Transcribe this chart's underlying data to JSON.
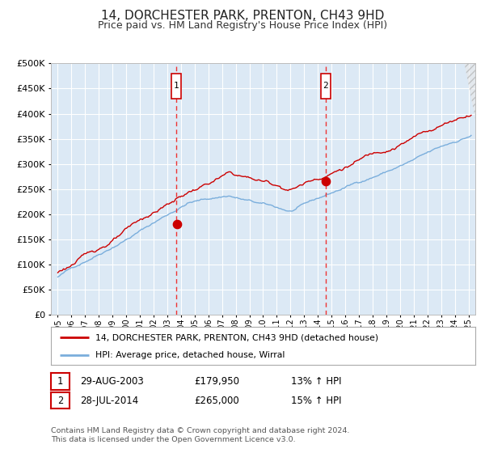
{
  "title": "14, DORCHESTER PARK, PRENTON, CH43 9HD",
  "subtitle": "Price paid vs. HM Land Registry's House Price Index (HPI)",
  "title_fontsize": 11,
  "subtitle_fontsize": 9,
  "background_color": "#ffffff",
  "plot_bg_color": "#dce9f5",
  "grid_color": "#ffffff",
  "transaction1": {
    "date_num": 2003.66,
    "price": 179950,
    "label": "1"
  },
  "transaction2": {
    "date_num": 2014.57,
    "price": 265000,
    "label": "2"
  },
  "vline_color": "#ee3333",
  "dot_color": "#cc0000",
  "house_line_color": "#cc0000",
  "hpi_line_color": "#7aaedc",
  "legend_house_label": "14, DORCHESTER PARK, PRENTON, CH43 9HD (detached house)",
  "legend_hpi_label": "HPI: Average price, detached house, Wirral",
  "table_row1": [
    "1",
    "29-AUG-2003",
    "£179,950",
    "13% ↑ HPI"
  ],
  "table_row2": [
    "2",
    "28-JUL-2014",
    "£265,000",
    "15% ↑ HPI"
  ],
  "footer": "Contains HM Land Registry data © Crown copyright and database right 2024.\nThis data is licensed under the Open Government Licence v3.0.",
  "ylim": [
    0,
    500000
  ],
  "xlim_start": 1994.5,
  "xlim_end": 2025.5
}
